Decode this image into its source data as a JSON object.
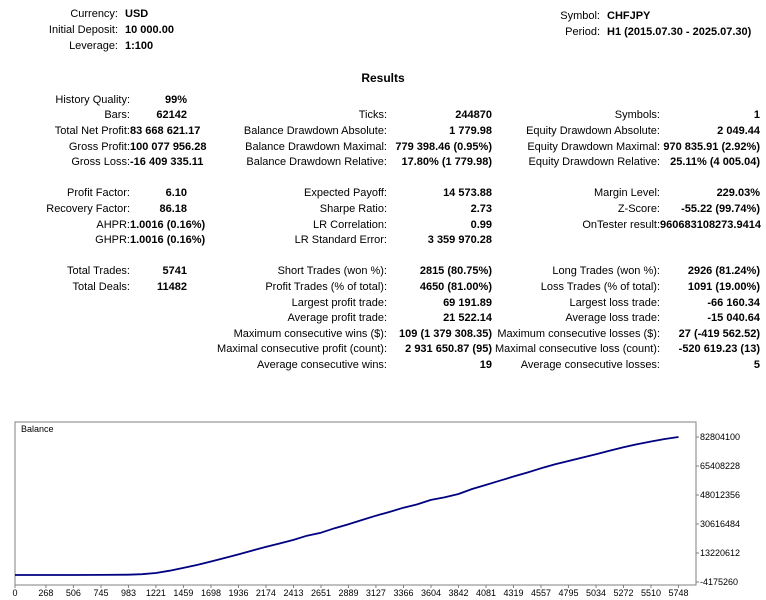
{
  "title": "Results",
  "header": {
    "left": [
      {
        "label": "Currency:",
        "value": "USD"
      },
      {
        "label": "Initial Deposit:",
        "value": "10 000.00"
      },
      {
        "label": "Leverage:",
        "value": "1:100"
      }
    ],
    "right": [
      {
        "label": "Symbol:",
        "value": "CHFJPY"
      },
      {
        "label": "Period:",
        "value": "H1 (2015.07.30 - 2025.07.30)"
      }
    ]
  },
  "stats_rows": [
    [
      {
        "label": "History Quality:",
        "value": "99%"
      },
      null,
      null
    ],
    [
      {
        "label": "Bars:",
        "value": "62142"
      },
      {
        "label": "Ticks:",
        "value": "244870"
      },
      {
        "label": "Symbols:",
        "value": "1"
      }
    ],
    [
      {
        "label": "Total Net Profit:",
        "value": "83 668 621.17"
      },
      {
        "label": "Balance Drawdown Absolute:",
        "value": "1 779.98"
      },
      {
        "label": "Equity Drawdown Absolute:",
        "value": "2 049.44"
      }
    ],
    [
      {
        "label": "Gross Profit:",
        "value": "100 077 956.28"
      },
      {
        "label": "Balance Drawdown Maximal:",
        "value": "779 398.46 (0.95%)"
      },
      {
        "label": "Equity Drawdown Maximal:",
        "value": "970 835.91 (2.92%)"
      }
    ],
    [
      {
        "label": "Gross Loss:",
        "value": "-16 409 335.11"
      },
      {
        "label": "Balance Drawdown Relative:",
        "value": "17.80% (1 779.98)"
      },
      {
        "label": "Equity Drawdown Relative:",
        "value": "25.11% (4 005.04)"
      }
    ],
    [
      null,
      null,
      null
    ],
    [
      {
        "label": "Profit Factor:",
        "value": "6.10"
      },
      {
        "label": "Expected Payoff:",
        "value": "14 573.88"
      },
      {
        "label": "Margin Level:",
        "value": "229.03%"
      }
    ],
    [
      {
        "label": "Recovery Factor:",
        "value": "86.18"
      },
      {
        "label": "Sharpe Ratio:",
        "value": "2.73"
      },
      {
        "label": "Z-Score:",
        "value": "-55.22 (99.74%)"
      }
    ],
    [
      {
        "label": "AHPR:",
        "value": "1.0016 (0.16%)"
      },
      {
        "label": "LR Correlation:",
        "value": "0.99"
      },
      {
        "label": "OnTester result:",
        "value": "960683108273.9414"
      }
    ],
    [
      {
        "label": "GHPR:",
        "value": "1.0016 (0.16%)"
      },
      {
        "label": "LR Standard Error:",
        "value": "3 359 970.28"
      },
      null
    ],
    [
      null,
      null,
      null
    ],
    [
      {
        "label": "Total Trades:",
        "value": "5741"
      },
      {
        "label": "Short Trades (won %):",
        "value": "2815 (80.75%)"
      },
      {
        "label": "Long Trades (won %):",
        "value": "2926 (81.24%)"
      }
    ],
    [
      {
        "label": "Total Deals:",
        "value": "11482"
      },
      {
        "label": "Profit Trades (% of total):",
        "value": "4650 (81.00%)"
      },
      {
        "label": "Loss Trades (% of total):",
        "value": "1091 (19.00%)"
      }
    ],
    [
      null,
      {
        "label": "Largest profit trade:",
        "value": "69 191.89"
      },
      {
        "label": "Largest loss trade:",
        "value": "-66 160.34"
      }
    ],
    [
      null,
      {
        "label": "Average profit trade:",
        "value": "21 522.14"
      },
      {
        "label": "Average loss trade:",
        "value": "-15 040.64"
      }
    ],
    [
      null,
      {
        "label": "Maximum consecutive wins ($):",
        "value": "109 (1 379 308.35)"
      },
      {
        "label": "Maximum consecutive losses ($):",
        "value": "27 (-419 562.52)"
      }
    ],
    [
      null,
      {
        "label": "Maximal consecutive profit (count):",
        "value": "2 931 650.87 (95)"
      },
      {
        "label": "Maximal consecutive loss (count):",
        "value": "-520 619.23 (13)"
      }
    ],
    [
      null,
      {
        "label": "Average consecutive wins:",
        "value": "19"
      },
      {
        "label": "Average consecutive losses:",
        "value": "5"
      }
    ]
  ],
  "chart_data": {
    "type": "line",
    "title": "Balance",
    "line_color": "#000080",
    "grid": false,
    "legend_position": "top-left-label",
    "xlim": [
      0,
      5900
    ],
    "ylim": [
      -5974833,
      91801966
    ],
    "x_ticks": [
      0,
      268,
      506,
      745,
      983,
      1221,
      1459,
      1698,
      1936,
      2174,
      2413,
      2651,
      2889,
      3127,
      3366,
      3604,
      3842,
      4081,
      4319,
      4557,
      4795,
      5034,
      5272,
      5510,
      5748
    ],
    "y_ticks": [
      82804100,
      65408228,
      48012356,
      30616484,
      13220612,
      -4175260
    ],
    "series": [
      {
        "name": "Balance",
        "x": [
          0,
          250,
          500,
          750,
          983,
          1100,
          1221,
          1340,
          1459,
          1580,
          1698,
          1820,
          1936,
          2050,
          2174,
          2300,
          2413,
          2530,
          2651,
          2770,
          2889,
          3010,
          3127,
          3250,
          3366,
          3480,
          3604,
          3720,
          3842,
          3960,
          4081,
          4200,
          4319,
          4440,
          4557,
          4680,
          4795,
          4910,
          5034,
          5150,
          5272,
          5390,
          5510,
          5630,
          5748
        ],
        "y": [
          10000,
          22000,
          45000,
          95000,
          210000,
          520000,
          1250000,
          2600000,
          4300000,
          6100000,
          8100000,
          10300000,
          12400000,
          14600000,
          16900000,
          19100000,
          21100000,
          23600000,
          25400000,
          28100000,
          30500000,
          33100000,
          35600000,
          38000000,
          40400000,
          42300000,
          45100000,
          46600000,
          48600000,
          51600000,
          54100000,
          56600000,
          59100000,
          61500000,
          64000000,
          66400000,
          68400000,
          70300000,
          72400000,
          74500000,
          76600000,
          78500000,
          80100000,
          81600000,
          82804100
        ]
      }
    ]
  }
}
